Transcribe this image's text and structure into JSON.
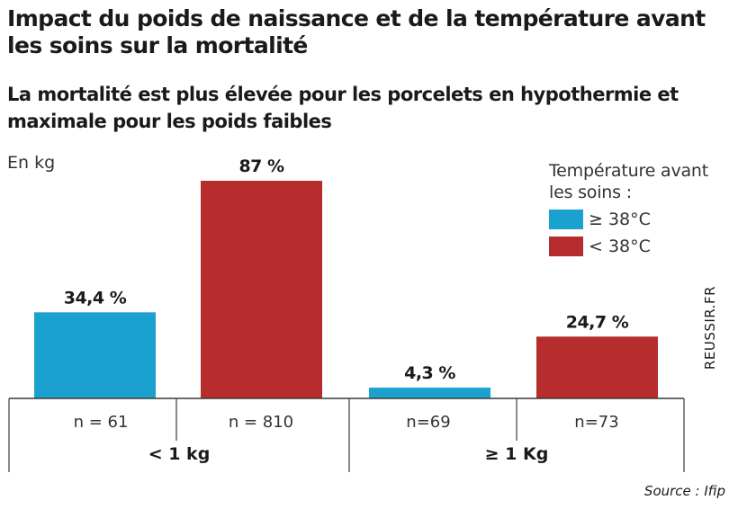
{
  "chart_data": {
    "type": "bar",
    "title": "Impact du poids de naissance et de la température avant les soins sur la mortalité",
    "subtitle": "La mortalité est plus élevée pour les porcelets en hypothermie et maximale pour les poids faibles",
    "unit_label": "En kg",
    "categories": [
      "< 1 kg",
      "≥ 1 Kg"
    ],
    "series": [
      {
        "name": "≥ 38°C",
        "color": "#1ba1cf",
        "values": [
          34.4,
          4.3
        ],
        "value_labels": [
          "34,4 %",
          "4,3 %"
        ],
        "n_labels": [
          "n = 61",
          "n=69"
        ]
      },
      {
        "name": "< 38°C",
        "color": "#b72c2d",
        "values": [
          87,
          24.7
        ],
        "value_labels": [
          "87 %",
          "24,7 %"
        ],
        "n_labels": [
          "n = 810",
          "n=73"
        ]
      }
    ],
    "legend_title": "Température avant les soins :",
    "legend_position": "top-right",
    "ylim": [
      0,
      100
    ],
    "grid": false
  },
  "credit": "REUSSIR.FR",
  "source": "Source : Ifip"
}
